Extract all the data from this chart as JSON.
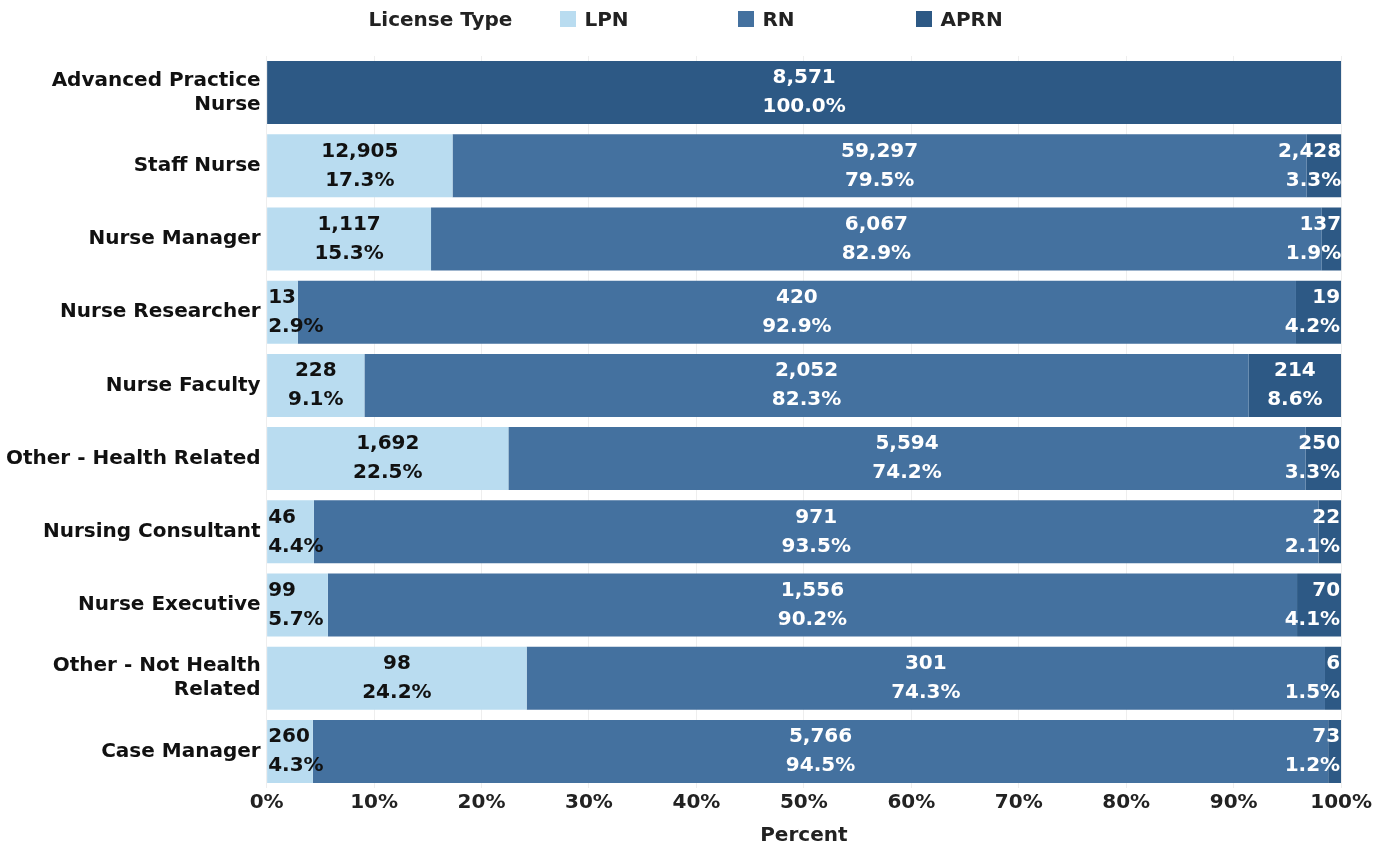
{
  "chart_data": {
    "type": "bar",
    "orientation": "horizontal",
    "stacked": true,
    "xlabel": "Percent",
    "legend_title": "License Type",
    "legend": "top",
    "categories": [
      "Advanced Practice Nurse",
      "Staff Nurse",
      "Nurse Manager",
      "Nurse Researcher",
      "Nurse Faculty",
      "Other - Health Related",
      "Nursing Consultant",
      "Nurse Executive",
      "Other - Not Health Related",
      "Case Manager"
    ],
    "series": [
      {
        "name": "LPN",
        "color": "#b9dcf0",
        "values": [
          null,
          17.3,
          15.3,
          2.9,
          9.1,
          22.5,
          4.4,
          5.7,
          24.2,
          4.3
        ],
        "value_labels": [
          null,
          "12,905\n17.3%",
          "1,117\n15.3%",
          "13\n2.9%",
          "228\n9.1%",
          "1,692\n22.5%",
          "46\n4.4%",
          "99\n5.7%",
          "98\n24.2%",
          "260\n4.3%"
        ]
      },
      {
        "name": "RN",
        "color": "#44719f",
        "values": [
          null,
          79.5,
          82.9,
          92.9,
          82.3,
          74.2,
          93.5,
          90.2,
          74.3,
          94.5
        ],
        "value_labels": [
          null,
          "59,297\n79.5%",
          "6,067\n82.9%",
          "420\n92.9%",
          "2,052\n82.3%",
          "5,594\n74.2%",
          "971\n93.5%",
          "1,556\n90.2%",
          "301\n74.3%",
          "5,766\n94.5%"
        ]
      },
      {
        "name": "APRN",
        "color": "#2d5985",
        "values": [
          100.0,
          3.3,
          1.9,
          4.2,
          8.6,
          3.3,
          2.1,
          4.1,
          1.5,
          1.2
        ],
        "value_labels": [
          "8,571\n100.0%",
          "2,428\n3.3%",
          "137\n1.9%",
          "19\n4.2%",
          "214\n8.6%",
          "250\n3.3%",
          "22\n2.1%",
          "70\n4.1%",
          "6\n1.5%",
          "73\n1.2%"
        ]
      }
    ],
    "xlim": [
      0,
      100
    ],
    "xticks": [
      {
        "value": 0,
        "label": "0%"
      },
      {
        "value": 10,
        "label": "10%"
      },
      {
        "value": 20,
        "label": "20%"
      },
      {
        "value": 30,
        "label": "30%"
      },
      {
        "value": 40,
        "label": "40%"
      },
      {
        "value": 50,
        "label": "50%"
      },
      {
        "value": 60,
        "label": "60%"
      },
      {
        "value": 70,
        "label": "70%"
      },
      {
        "value": 80,
        "label": "80%"
      },
      {
        "value": 90,
        "label": "90%"
      },
      {
        "value": 100,
        "label": "100%"
      }
    ],
    "grid": "x"
  }
}
